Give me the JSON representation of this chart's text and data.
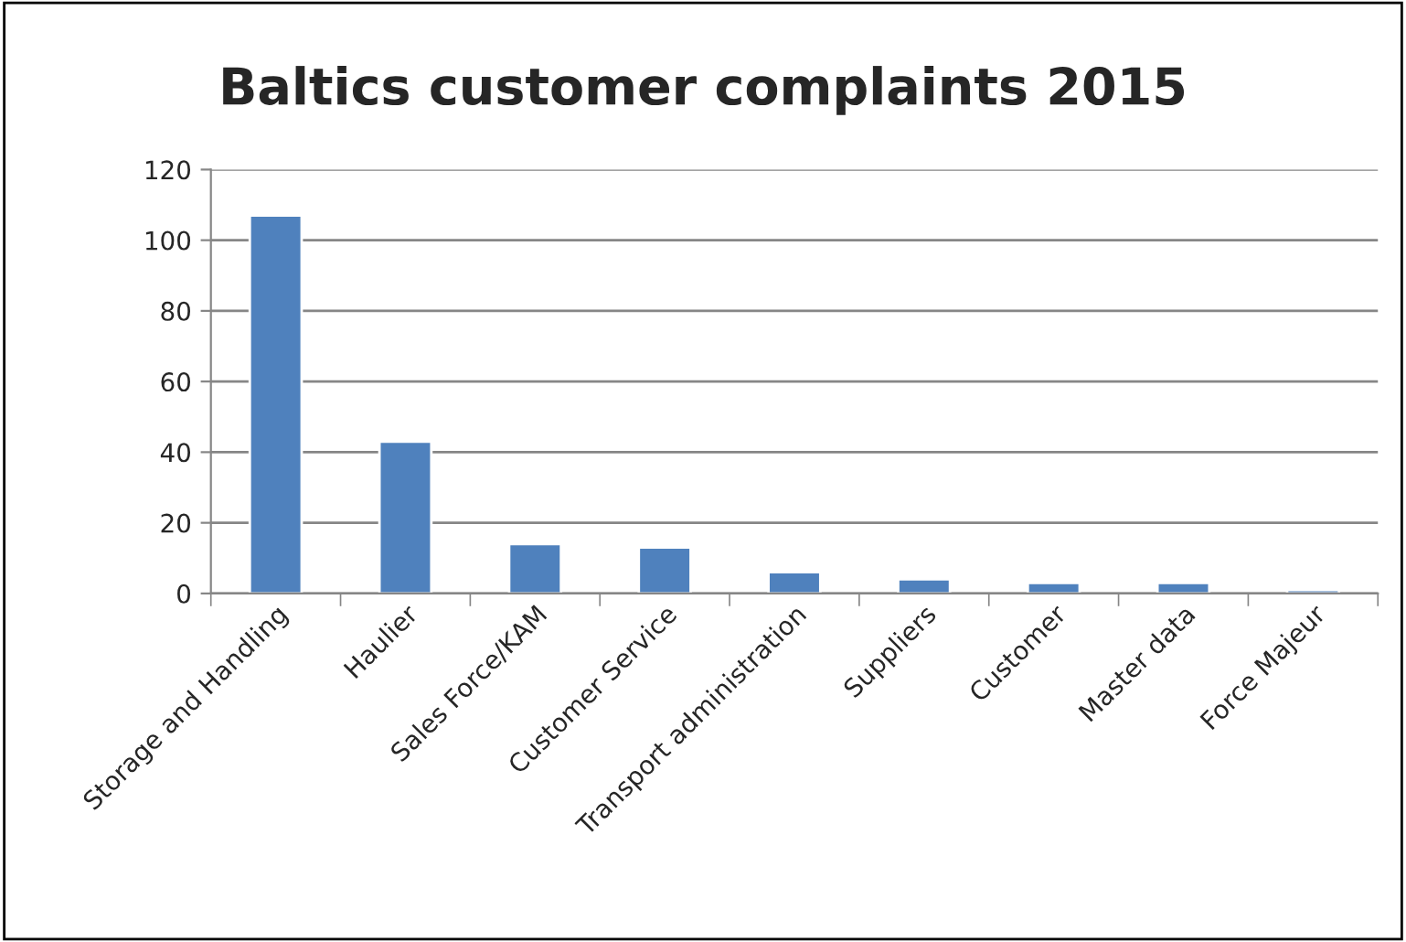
{
  "chart_data": {
    "type": "bar",
    "title": "Baltics customer complaints 2015",
    "categories": [
      "Storage and Handling",
      "Haulier",
      "Sales Force/KAM",
      "Customer Service",
      "Transport administration",
      "Suppliers",
      "Customer",
      "Master data",
      "Force Majeur"
    ],
    "values": [
      107,
      43,
      14,
      13,
      6,
      4,
      3,
      3,
      1
    ],
    "color": "#4f81bd",
    "ylim": [
      0,
      120
    ],
    "yticks": [
      0,
      20,
      40,
      60,
      80,
      100,
      120
    ],
    "grid": "y",
    "legend": false
  }
}
